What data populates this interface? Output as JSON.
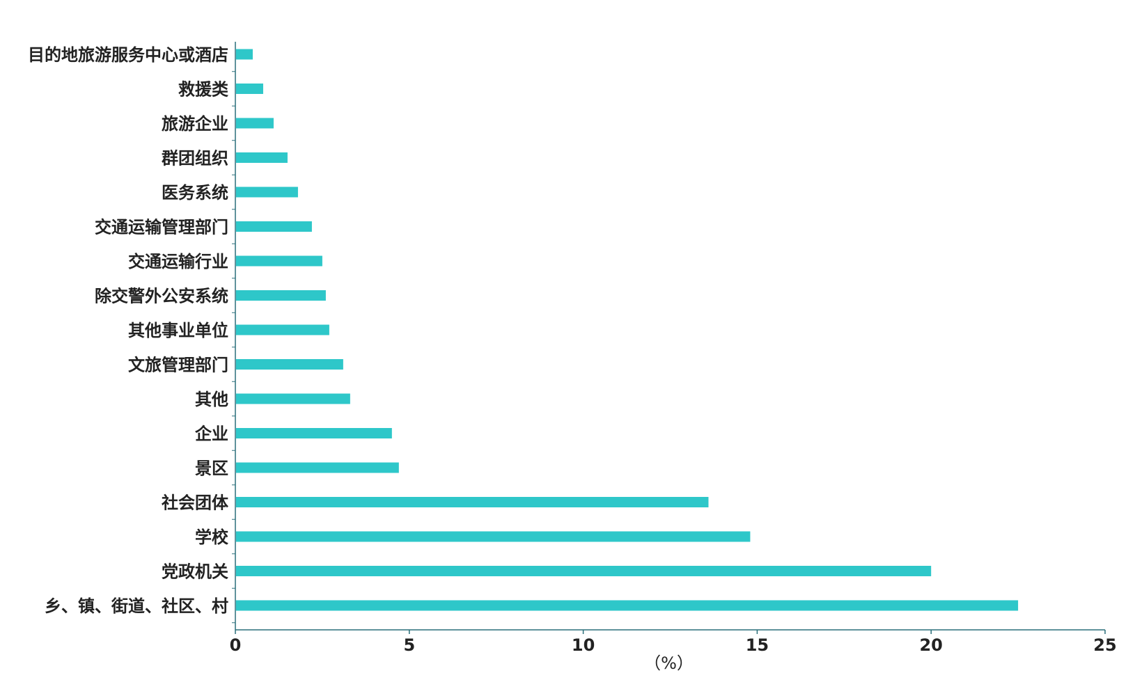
{
  "chart_data": {
    "type": "bar",
    "orientation": "horizontal",
    "title": "",
    "xlabel": "（%）",
    "ylabel": "",
    "xlim": [
      0,
      25
    ],
    "xticks": [
      0,
      5,
      10,
      15,
      20,
      25
    ],
    "grid": false,
    "bar_color": "#2ec7c9",
    "axis_color": "#2a6f7a",
    "categories": [
      "目的地旅游服务中心或酒店",
      "救援类",
      "旅游企业",
      "群团组织",
      "医务系统",
      "交通运输管理部门",
      "交通运输行业",
      "除交警外公安系统",
      "其他事业单位",
      "文旅管理部门",
      "其他",
      "企业",
      "景区",
      "社会团体",
      "学校",
      "党政机关",
      "乡、镇、街道、社区、村"
    ],
    "values": [
      0.5,
      0.8,
      1.1,
      1.5,
      1.8,
      2.2,
      2.5,
      2.6,
      2.7,
      3.1,
      3.3,
      4.5,
      4.7,
      13.6,
      14.8,
      20.0,
      22.5
    ]
  }
}
